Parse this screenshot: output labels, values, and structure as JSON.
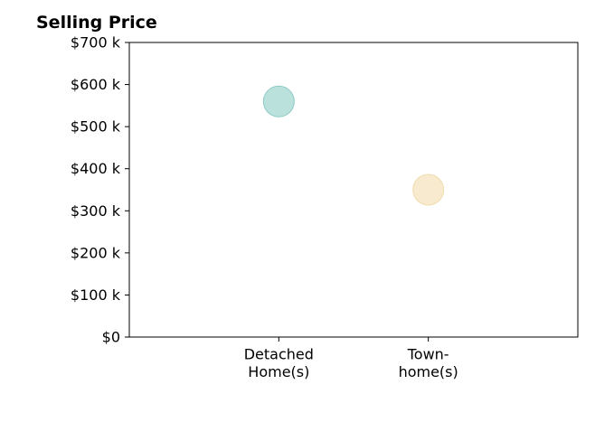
{
  "chart_data": {
    "type": "scatter",
    "title": "Selling Price",
    "xlabel": "",
    "ylabel": "",
    "categories": [
      [
        "Detached",
        "Home(s)"
      ],
      [
        "Town-",
        "home(s)"
      ]
    ],
    "values": [
      560000,
      350000
    ],
    "point_colors": [
      "#a8d8d4",
      "#f5e4c0"
    ],
    "point_edge_colors": [
      "#8ccac4",
      "#f1dcae"
    ],
    "ylim": [
      0,
      700000
    ],
    "y_ticks": [
      0,
      100000,
      200000,
      300000,
      400000,
      500000,
      600000,
      700000
    ],
    "y_tick_labels": [
      "$0",
      "$100 k",
      "$200 k",
      "$300 k",
      "$400 k",
      "$500 k",
      "$600 k",
      "$700 k"
    ],
    "x_range": [
      -1,
      2
    ],
    "grid": false,
    "legend": "none"
  }
}
